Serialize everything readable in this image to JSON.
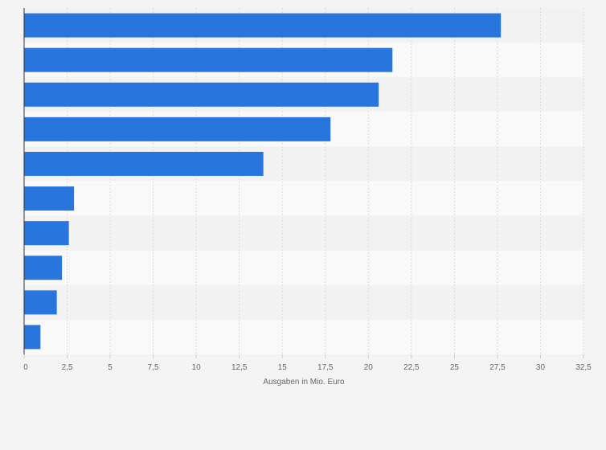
{
  "chart_data": {
    "type": "bar",
    "orientation": "horizontal",
    "title": "",
    "xlabel": "Ausgaben in Mio. Euro",
    "ylabel": "",
    "categories": [
      "",
      "",
      "",
      "",
      "",
      "",
      "",
      "",
      "",
      ""
    ],
    "values": [
      27.7,
      21.4,
      20.6,
      17.8,
      13.9,
      2.9,
      2.6,
      2.2,
      1.9,
      0.95
    ],
    "xlim": [
      0,
      32.5
    ],
    "ticks": [
      0,
      2.5,
      5,
      7.5,
      10,
      12.5,
      15,
      17.5,
      20,
      22.5,
      25,
      27.5,
      30,
      32.5
    ],
    "tick_labels": [
      "0",
      "2,5",
      "5",
      "7,5",
      "10",
      "12,5",
      "15",
      "17,5",
      "20",
      "22,5",
      "25",
      "27,5",
      "30",
      "32,5"
    ],
    "grid": true,
    "colors": {
      "bar": "#2876dd",
      "band_light": "#f9f9f9",
      "band_dark": "#f2f2f2",
      "grid": "#dcdcdc",
      "axis": "#333333",
      "text": "#666666"
    }
  }
}
